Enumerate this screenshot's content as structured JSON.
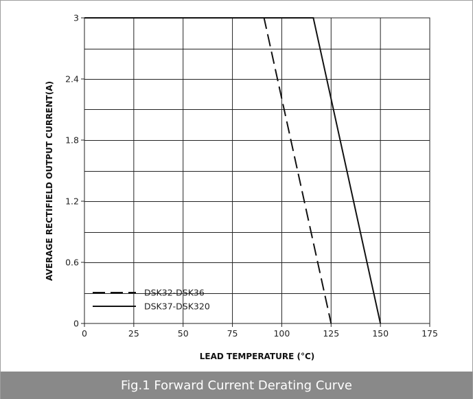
{
  "caption": "Fig.1 Forward Current Derating Curve",
  "chart_data": {
    "type": "line",
    "xlabel": "LEAD TEMPERATURE (°C)",
    "ylabel": "AVERAGE RECTIFIELD OUTPUT CURRENT(A)",
    "xlim": [
      0,
      175
    ],
    "ylim": [
      0,
      3
    ],
    "x_ticks": [
      "0",
      "25",
      "50",
      "75",
      "100",
      "125",
      "150",
      "175"
    ],
    "y_ticks": [
      "0",
      "0.6",
      "1.2",
      "1.8",
      "2.4",
      "3"
    ],
    "grid": true,
    "grid_x_step": 25,
    "grid_y_step": 0.3,
    "legend_position": "bottom-left",
    "series": [
      {
        "name": "DSK32-DSK36",
        "style": "dashed",
        "points": [
          [
            0,
            3
          ],
          [
            91,
            3
          ],
          [
            125,
            0
          ]
        ]
      },
      {
        "name": "DSK37-DSK320",
        "style": "solid",
        "points": [
          [
            0,
            3
          ],
          [
            116,
            3
          ],
          [
            150,
            0
          ]
        ]
      }
    ]
  }
}
